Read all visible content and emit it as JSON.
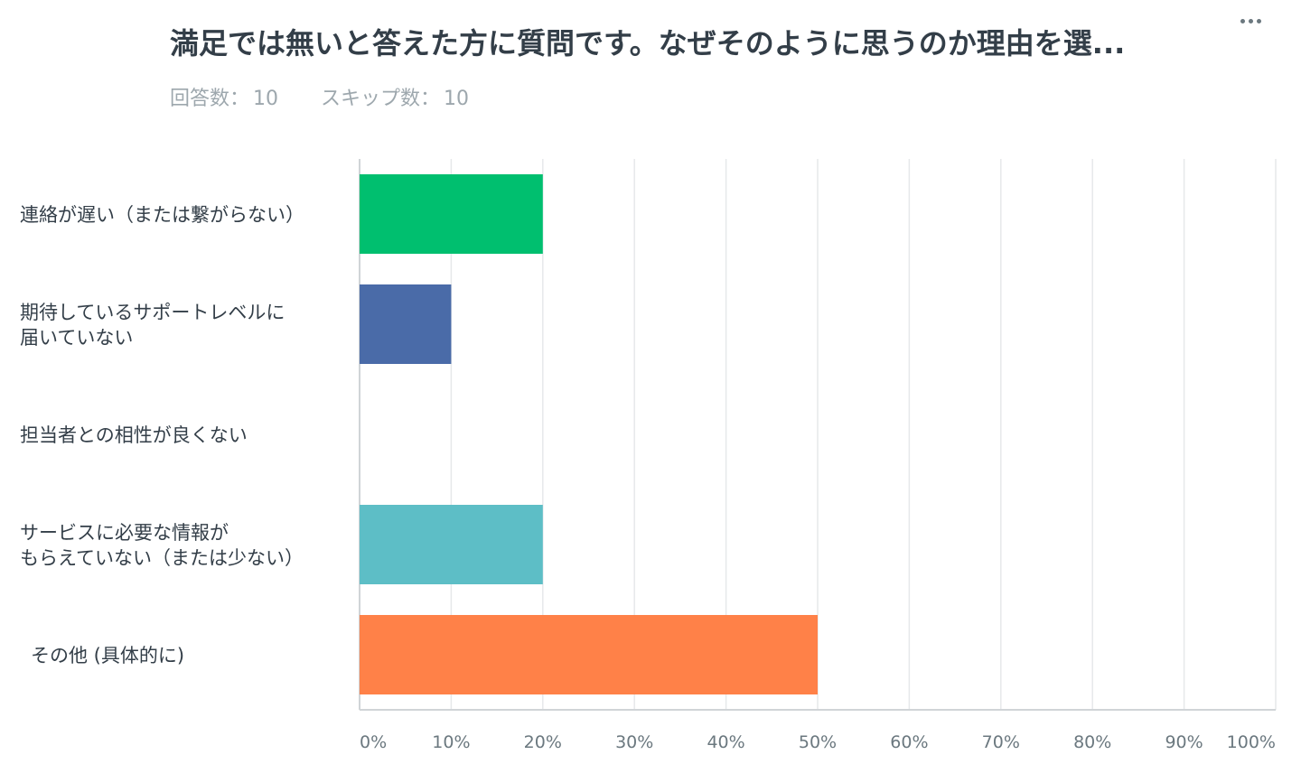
{
  "question": {
    "title": "満足では無いと答えた方に質問です。なぜそのように思うのか理由を選...",
    "answered_label": "回答数：",
    "answered_value": "10",
    "skipped_label": "スキップ数：",
    "skipped_value": "10"
  },
  "menu": {
    "icon": "more-horizontal-icon"
  },
  "colors": {
    "accent_green": "#00bf6f",
    "accent_blue": "#4a6ba8",
    "accent_teal": "#5dbec6",
    "accent_orange": "#ff8148",
    "grid": "#e6e8ea",
    "axis": "#d0d4d7"
  },
  "chart_data": {
    "type": "bar",
    "orientation": "horizontal",
    "title": "",
    "xlabel": "",
    "ylabel": "",
    "xlim": [
      0,
      100
    ],
    "grid": true,
    "x_ticks": [
      "0%",
      "10%",
      "20%",
      "30%",
      "40%",
      "50%",
      "60%",
      "70%",
      "80%",
      "90%",
      "100%"
    ],
    "categories": [
      [
        "連絡が遅い（または繋がらない）"
      ],
      [
        "期待しているサポートレベルに",
        "届いていない"
      ],
      [
        "担当者との相性が良くない"
      ],
      [
        "サービスに必要な情報が",
        "もらえていない（または少ない）"
      ],
      [
        "その他 (具体的に)"
      ]
    ],
    "values": [
      20,
      10,
      0,
      20,
      50
    ],
    "bar_colors": [
      "#00bf6f",
      "#4a6ba8",
      "#5dbec6",
      "#5dbec6",
      "#ff8148"
    ]
  }
}
